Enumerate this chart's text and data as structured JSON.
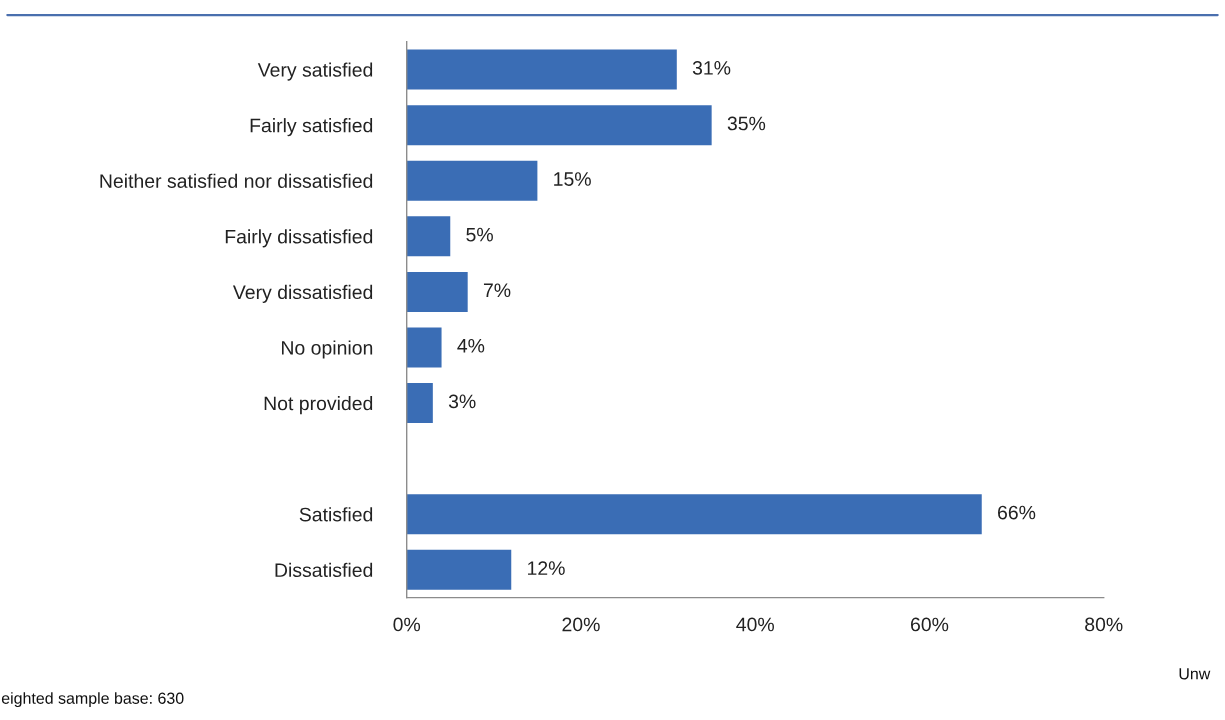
{
  "chart_data": {
    "type": "bar",
    "orientation": "horizontal",
    "categories": [
      "Very satisfied",
      "Fairly satisfied",
      "Neither satisfied nor dissatisfied",
      "Fairly dissatisfied",
      "Very dissatisfied",
      "No opinion",
      "Not provided",
      null,
      "Satisfied",
      "Dissatisfied"
    ],
    "values": [
      31,
      35,
      15,
      5,
      7,
      4,
      3,
      null,
      66,
      12
    ],
    "value_labels": [
      "31%",
      "35%",
      "15%",
      "5%",
      "7%",
      "4%",
      "3%",
      null,
      "66%",
      "12%"
    ],
    "color": "#3a6db5",
    "xlim": [
      0,
      80
    ],
    "xticks": [
      {
        "value": 0,
        "label": "0%"
      },
      {
        "value": 20,
        "label": "20%"
      },
      {
        "value": 40,
        "label": "40%"
      },
      {
        "value": 60,
        "label": "60%"
      },
      {
        "value": 80,
        "label": "80%"
      }
    ],
    "annotations": [
      "Unw",
      "eighted sample base: 630"
    ]
  }
}
